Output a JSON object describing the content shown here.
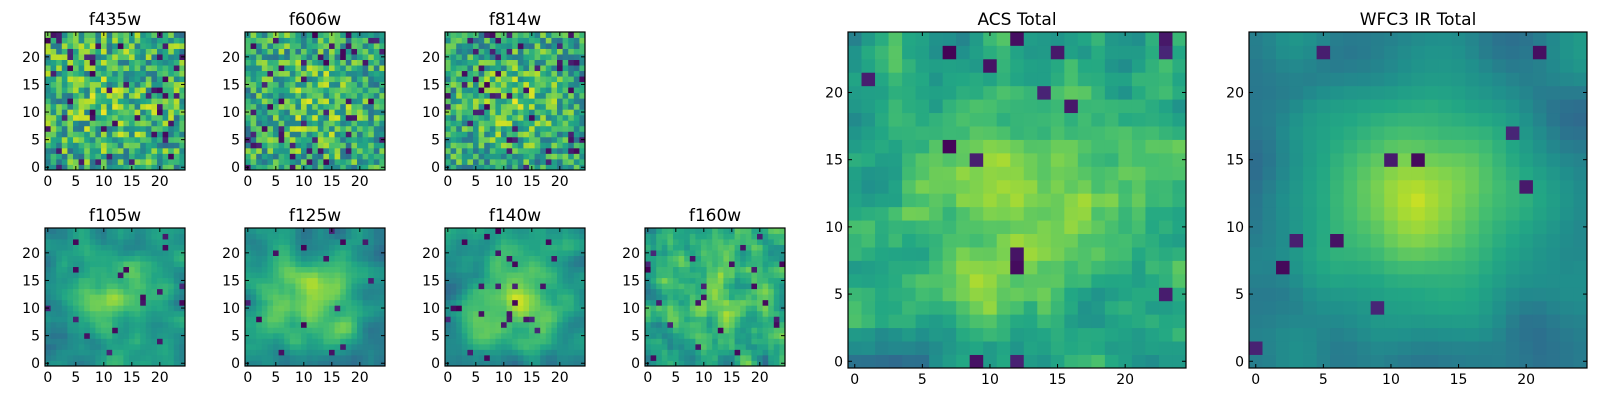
{
  "chart_data": [
    {
      "type": "heatmap",
      "title": "f435w",
      "x_ticks": [
        "0",
        "5",
        "10",
        "15",
        "20"
      ],
      "y_ticks": [
        "0",
        "5",
        "10",
        "15",
        "20"
      ],
      "xlim": [
        -0.5,
        24.5
      ],
      "ylim": [
        -0.5,
        24.5
      ],
      "grid": false,
      "colormap": "viridis",
      "seed": 11,
      "smooth": 0,
      "blob_strength": 0.15,
      "outlier_fraction": 0.08
    },
    {
      "type": "heatmap",
      "title": "f606w",
      "x_ticks": [
        "0",
        "5",
        "10",
        "15",
        "20"
      ],
      "y_ticks": [
        "0",
        "5",
        "10",
        "15",
        "20"
      ],
      "xlim": [
        -0.5,
        24.5
      ],
      "ylim": [
        -0.5,
        24.5
      ],
      "grid": false,
      "colormap": "viridis",
      "seed": 23,
      "smooth": 0,
      "blob_strength": 0.2,
      "outlier_fraction": 0.07
    },
    {
      "type": "heatmap",
      "title": "f814w",
      "x_ticks": [
        "0",
        "5",
        "10",
        "15",
        "20"
      ],
      "y_ticks": [
        "0",
        "5",
        "10",
        "15",
        "20"
      ],
      "xlim": [
        -0.5,
        24.5
      ],
      "ylim": [
        -0.5,
        24.5
      ],
      "grid": false,
      "colormap": "viridis",
      "seed": 37,
      "smooth": 0,
      "blob_strength": 0.25,
      "outlier_fraction": 0.08
    },
    {
      "type": "heatmap",
      "title": "f105w",
      "x_ticks": [
        "0",
        "5",
        "10",
        "15",
        "20"
      ],
      "y_ticks": [
        "0",
        "5",
        "10",
        "15",
        "20"
      ],
      "xlim": [
        -0.5,
        24.5
      ],
      "ylim": [
        -0.5,
        24.5
      ],
      "grid": false,
      "colormap": "viridis",
      "seed": 41,
      "smooth": 2,
      "blob_strength": 0.5,
      "outlier_fraction": 0.02
    },
    {
      "type": "heatmap",
      "title": "f125w",
      "x_ticks": [
        "0",
        "5",
        "10",
        "15",
        "20"
      ],
      "y_ticks": [
        "0",
        "5",
        "10",
        "15",
        "20"
      ],
      "xlim": [
        -0.5,
        24.5
      ],
      "ylim": [
        -0.5,
        24.5
      ],
      "grid": false,
      "colormap": "viridis",
      "seed": 53,
      "smooth": 2,
      "blob_strength": 0.5,
      "outlier_fraction": 0.03
    },
    {
      "type": "heatmap",
      "title": "f140w",
      "x_ticks": [
        "0",
        "5",
        "10",
        "15",
        "20"
      ],
      "y_ticks": [
        "0",
        "5",
        "10",
        "15",
        "20"
      ],
      "xlim": [
        -0.5,
        24.5
      ],
      "ylim": [
        -0.5,
        24.5
      ],
      "grid": false,
      "colormap": "viridis",
      "seed": 67,
      "smooth": 2,
      "blob_strength": 0.5,
      "outlier_fraction": 0.03
    },
    {
      "type": "heatmap",
      "title": "f160w",
      "x_ticks": [
        "0",
        "5",
        "10",
        "15",
        "20"
      ],
      "y_ticks": [
        "0",
        "5",
        "10",
        "15",
        "20"
      ],
      "xlim": [
        -0.5,
        24.5
      ],
      "ylim": [
        -0.5,
        24.5
      ],
      "grid": false,
      "colormap": "viridis",
      "seed": 79,
      "smooth": 1,
      "blob_strength": 0.3,
      "outlier_fraction": 0.05
    },
    {
      "type": "heatmap",
      "title": "ACS Total",
      "x_ticks": [
        "0",
        "5",
        "10",
        "15",
        "20"
      ],
      "y_ticks": [
        "0",
        "5",
        "10",
        "15",
        "20"
      ],
      "xlim": [
        -0.5,
        24.5
      ],
      "ylim": [
        -0.5,
        24.5
      ],
      "grid": false,
      "colormap": "viridis",
      "seed": 97,
      "smooth": 1,
      "blob_strength": 0.35,
      "outlier_fraction": 0.03
    },
    {
      "type": "heatmap",
      "title": "WFC3 IR Total",
      "x_ticks": [
        "0",
        "5",
        "10",
        "15",
        "20"
      ],
      "y_ticks": [
        "0",
        "5",
        "10",
        "15",
        "20"
      ],
      "xlim": [
        -0.5,
        24.5
      ],
      "ylim": [
        -0.5,
        24.5
      ],
      "grid": false,
      "colormap": "viridis",
      "seed": 113,
      "smooth": 3,
      "blob_strength": 0.7,
      "outlier_fraction": 0.02
    }
  ]
}
